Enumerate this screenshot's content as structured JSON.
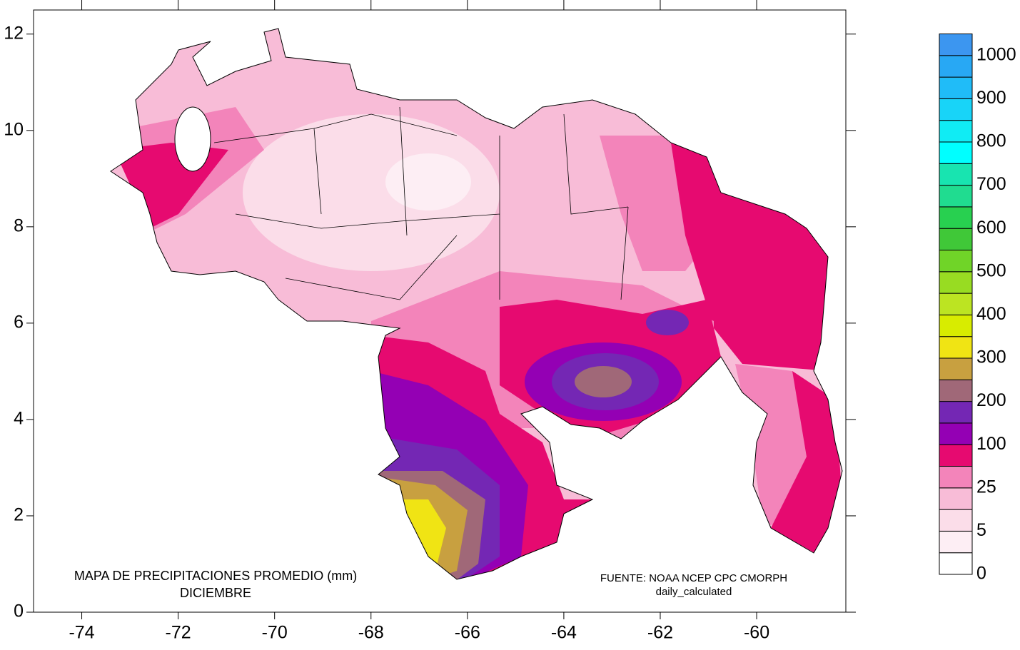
{
  "chart_data": {
    "type": "map",
    "title": "MAPA DE PRECIPITACIONES PROMEDIO (mm)",
    "subtitle": "DICIEMBRE",
    "source": "FUENTE: NOAA NCEP CPC CMORPH",
    "source_detail": "daily_calculated",
    "xlim": [
      -75,
      -58.15
    ],
    "ylim": [
      0,
      12.5
    ],
    "xticks": [
      -74,
      -72,
      -70,
      -68,
      -66,
      -64,
      -62,
      -60
    ],
    "yticks": [
      0,
      2,
      4,
      6,
      8,
      10,
      12
    ],
    "legend": {
      "levels": [
        0,
        5,
        25,
        100,
        200,
        300,
        400,
        500,
        600,
        700,
        800,
        900,
        1000
      ],
      "colors": [
        "#ffffff",
        "#fdeef4",
        "#fbdde9",
        "#f8bcd7",
        "#f384ba",
        "#e60a70",
        "#9400b4",
        "#7427b4",
        "#a06878",
        "#c8a040",
        "#f0e414",
        "#d8ec00",
        "#bce422",
        "#98dc22",
        "#70d428",
        "#40c838",
        "#28d050",
        "#20dc90",
        "#18e4b0",
        "#00ffff",
        "#10ecf4",
        "#18d4f8",
        "#20bcf8",
        "#28a8f4",
        "#3c96f0"
      ]
    }
  }
}
